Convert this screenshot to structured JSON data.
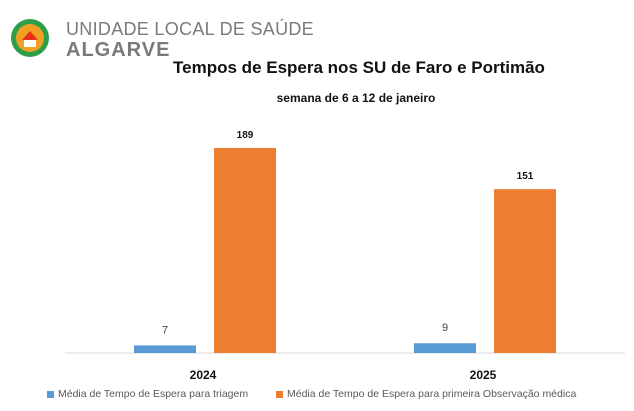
{
  "header": {
    "org_line1": "UNIDADE LOCAL DE SAÚDE",
    "org_line2": "ALGARVE",
    "logo_icon": "uls-algarve-logo-icon",
    "logo_colors": {
      "outer": "#2e9e48",
      "inner": "#f2a024",
      "accent": "#e5331a"
    }
  },
  "colors": {
    "series_triage": "#5b9bd5",
    "series_medical": "#ed7d31",
    "axis": "#d9d9d9",
    "label_text": "#111111",
    "small_label_text": "#404040"
  },
  "chart_data": {
    "type": "bar",
    "title": "Tempos de Espera nos SU de Faro e Portimão",
    "subtitle": "semana de 6 a 12 de janeiro",
    "categories": [
      "2024",
      "2025"
    ],
    "series": [
      {
        "name": "Média de Tempo de Espera para triagem",
        "values": [
          7,
          9
        ]
      },
      {
        "name": "Média de Tempo de Espera para primeira Observação médica",
        "values": [
          189,
          151
        ]
      }
    ],
    "xlabel": "",
    "ylabel": "",
    "ylim": [
      0,
      200
    ],
    "grid": false,
    "data_labels": true,
    "legend_position": "bottom"
  }
}
